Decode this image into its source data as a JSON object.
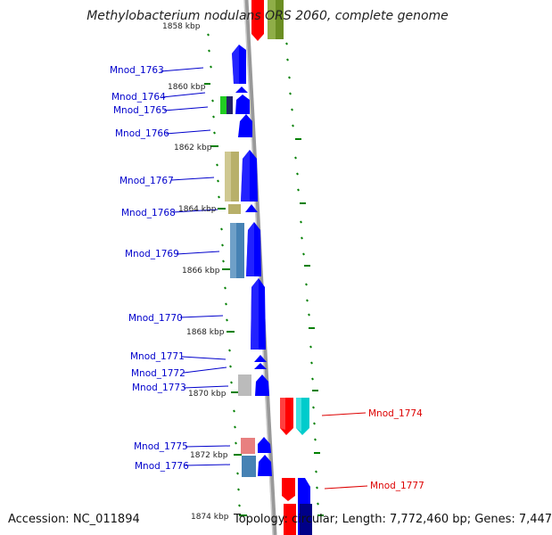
{
  "header": {
    "title": "Methylobacterium nodulans ORS 2060, complete genome"
  },
  "footer": {
    "accession": "Accession: NC_011894",
    "summary": "Topology: circular; Length: 7,772,460 bp; Genes: 7,447"
  },
  "colors": {
    "forward_strand": "#0000ff",
    "reverse_strand": "#ff0000",
    "backbone": "#999999",
    "tick": "#008000",
    "left_label": "#0000cc",
    "right_label": "#dd0000"
  },
  "ruler": {
    "top_label": "1858 kbp",
    "labels": [
      "1860 kbp",
      "1862 kbp",
      "1864 kbp",
      "1866 kbp",
      "1868 kbp",
      "1870 kbp",
      "1872 kbp",
      "1874 kbp"
    ]
  },
  "genes_left": [
    {
      "id": "Mnod_1763"
    },
    {
      "id": "Mnod_1764"
    },
    {
      "id": "Mnod_1765"
    },
    {
      "id": "Mnod_1766"
    },
    {
      "id": "Mnod_1767"
    },
    {
      "id": "Mnod_1768"
    },
    {
      "id": "Mnod_1769"
    },
    {
      "id": "Mnod_1770"
    },
    {
      "id": "Mnod_1771"
    },
    {
      "id": "Mnod_1772"
    },
    {
      "id": "Mnod_1773"
    },
    {
      "id": "Mnod_1775"
    },
    {
      "id": "Mnod_1776"
    }
  ],
  "genes_right": [
    {
      "id": "Mnod_1774"
    },
    {
      "id": "Mnod_1777"
    }
  ]
}
